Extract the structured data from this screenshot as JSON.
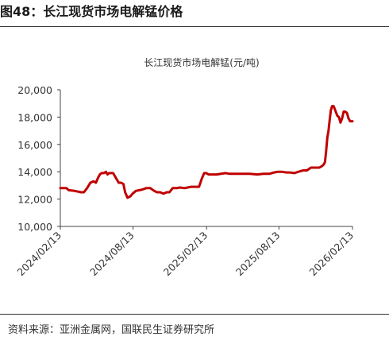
{
  "figure": {
    "title": "图48：长江现货市场电解锰价格",
    "source": "资料来源：亚洲金属网，国联民生证券研究所"
  },
  "chart_data": {
    "type": "line",
    "title": "长江现货市场电解锰(元/吨)",
    "xlabel": "",
    "ylabel": "",
    "ylim": [
      10000,
      20000
    ],
    "yticks": [
      "10,000",
      "12,000",
      "14,000",
      "16,000",
      "18,000",
      "20,000"
    ],
    "ytick_values": [
      10000,
      12000,
      14000,
      16000,
      18000,
      20000
    ],
    "xlim": [
      "2024-02-13",
      "2026-02-13"
    ],
    "xticks": [
      "2024/02/13",
      "2024/08/13",
      "2025/02/13",
      "2025/08/13",
      "2026/02/13"
    ],
    "xtick_dates": [
      "2024-02-13",
      "2024-08-13",
      "2025-02-13",
      "2025-08-13",
      "2026-02-13"
    ],
    "grid": false,
    "legend": "none",
    "series": [
      {
        "color": "#c00000",
        "x": [
          "2024-02-13",
          "2024-02-28",
          "2024-03-05",
          "2024-03-20",
          "2024-04-05",
          "2024-04-12",
          "2024-04-20",
          "2024-04-28",
          "2024-05-06",
          "2024-05-12",
          "2024-05-18",
          "2024-05-22",
          "2024-05-26",
          "2024-06-01",
          "2024-06-06",
          "2024-06-10",
          "2024-06-14",
          "2024-06-18",
          "2024-06-24",
          "2024-07-08",
          "2024-07-14",
          "2024-07-20",
          "2024-07-24",
          "2024-07-30",
          "2024-08-06",
          "2024-08-12",
          "2024-08-20",
          "2024-09-05",
          "2024-09-15",
          "2024-09-25",
          "2024-10-05",
          "2024-10-12",
          "2024-10-20",
          "2024-10-28",
          "2024-11-05",
          "2024-11-12",
          "2024-11-20",
          "2024-12-01",
          "2024-12-08",
          "2024-12-20",
          "2025-01-05",
          "2025-01-12",
          "2025-01-25",
          "2025-02-01",
          "2025-02-07",
          "2025-02-12",
          "2025-02-18",
          "2025-02-25",
          "2025-03-10",
          "2025-04-01",
          "2025-04-12",
          "2025-04-20",
          "2025-05-10",
          "2025-06-01",
          "2025-06-20",
          "2025-07-05",
          "2025-07-20",
          "2025-08-01",
          "2025-08-10",
          "2025-08-20",
          "2025-09-01",
          "2025-09-10",
          "2025-09-20",
          "2025-10-01",
          "2025-10-12",
          "2025-10-22",
          "2025-11-01",
          "2025-11-08",
          "2025-11-15",
          "2025-11-22",
          "2025-11-28",
          "2025-12-02",
          "2025-12-06",
          "2025-12-09",
          "2025-12-12",
          "2025-12-15",
          "2025-12-18",
          "2025-12-21",
          "2025-12-24",
          "2025-12-28",
          "2026-01-02",
          "2026-01-06",
          "2026-01-10",
          "2026-01-14",
          "2026-01-18",
          "2026-01-22",
          "2026-01-26",
          "2026-01-30",
          "2026-02-03",
          "2026-02-07",
          "2026-02-13"
        ],
        "y": [
          12800,
          12800,
          12650,
          12600,
          12500,
          12500,
          12800,
          13200,
          13300,
          13200,
          13600,
          13800,
          13900,
          13900,
          14000,
          13800,
          13900,
          13900,
          13900,
          13200,
          13200,
          13100,
          12500,
          12100,
          12200,
          12400,
          12600,
          12700,
          12800,
          12800,
          12600,
          12500,
          12500,
          12400,
          12500,
          12500,
          12800,
          12800,
          12850,
          12800,
          12900,
          12900,
          12900,
          13500,
          13900,
          13900,
          13800,
          13800,
          13800,
          13900,
          13850,
          13850,
          13850,
          13850,
          13800,
          13850,
          13850,
          13950,
          14000,
          14000,
          13950,
          13950,
          13900,
          14000,
          14100,
          14100,
          14300,
          14300,
          14300,
          14300,
          14400,
          14500,
          14700,
          15500,
          16500,
          17000,
          17800,
          18500,
          18800,
          18800,
          18400,
          18100,
          18000,
          17600,
          17900,
          18400,
          18400,
          18300,
          17900,
          17700,
          17700
        ]
      }
    ]
  }
}
